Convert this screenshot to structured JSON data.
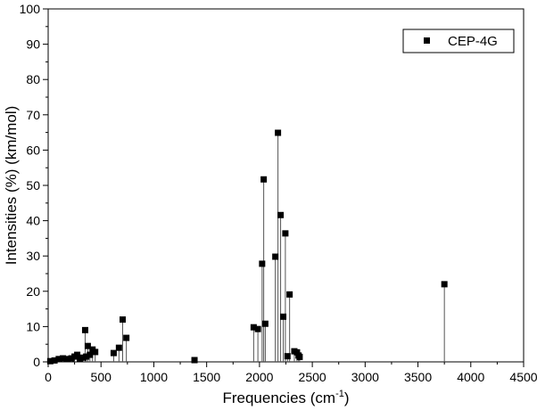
{
  "chart_data": {
    "type": "scatter",
    "style": "stick",
    "xlabel": "Frequencies (cm",
    "xlabel_superscript": "-1",
    "xlabel_suffix": ")",
    "ylabel": "Intensities (%) (km/mol)",
    "xlim": [
      0,
      4500
    ],
    "ylim": [
      0,
      100
    ],
    "x_ticks": [
      0,
      500,
      1000,
      1500,
      2000,
      2500,
      3000,
      3500,
      4000,
      4500
    ],
    "y_ticks": [
      0,
      10,
      20,
      30,
      40,
      50,
      60,
      70,
      80,
      90,
      100
    ],
    "grid": false,
    "legend_position": "top-right",
    "series": [
      {
        "name": "CEP-4G",
        "color": "#000000",
        "marker": "square",
        "x": [
          20,
          60,
          100,
          140,
          180,
          220,
          250,
          275,
          300,
          330,
          350,
          360,
          375,
          395,
          420,
          445,
          620,
          670,
          705,
          740,
          1385,
          1945,
          1985,
          2025,
          2040,
          2055,
          2150,
          2175,
          2200,
          2225,
          2245,
          2265,
          2285,
          2330,
          2355,
          2370,
          2380,
          3750
        ],
        "y": [
          0.2,
          0.4,
          0.8,
          1.0,
          0.8,
          1.0,
          1.5,
          2.0,
          0.8,
          1.2,
          9.0,
          1.5,
          4.5,
          2.0,
          3.5,
          2.8,
          2.5,
          4.0,
          12.0,
          6.8,
          0.5,
          9.8,
          9.3,
          27.8,
          51.7,
          10.8,
          29.8,
          64.9,
          41.6,
          12.8,
          36.4,
          1.6,
          19.1,
          3.0,
          2.7,
          1.8,
          1.4,
          22.0
        ]
      }
    ]
  }
}
